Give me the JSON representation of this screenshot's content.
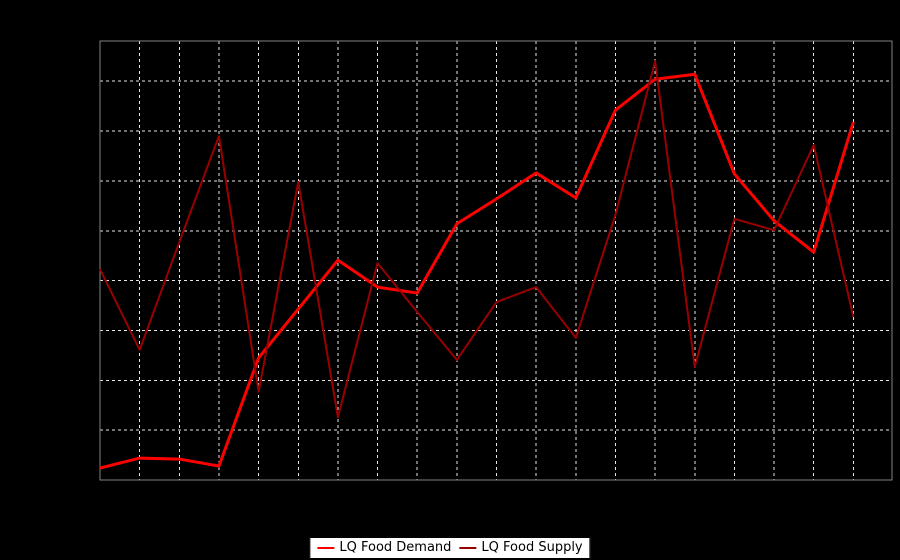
{
  "chart_data": {
    "type": "line",
    "title": "",
    "xlabel": "",
    "ylabel": "",
    "axis_tick_labels_visible": false,
    "grid": true,
    "gridline_color": "#e6e6e6",
    "plot_border_color": "#828282",
    "plot_background": "#000000",
    "page_background": "#000000",
    "xlim": [
      1,
      20.97
    ],
    "ylim": [
      0,
      8.81
    ],
    "x": [
      1,
      2,
      3,
      4,
      5,
      6,
      7,
      8,
      9,
      10,
      11,
      12,
      13,
      14,
      15,
      16,
      17,
      18,
      19,
      20
    ],
    "series": [
      {
        "name": "LQ Food Demand",
        "color": "#ff0000",
        "stroke_width": 3,
        "values": [
          0.24,
          0.44,
          0.42,
          0.28,
          2.45,
          3.43,
          4.41,
          3.87,
          3.75,
          5.14,
          5.64,
          6.16,
          5.66,
          7.42,
          8.04,
          8.14,
          6.14,
          5.2,
          4.57,
          7.18
        ]
      },
      {
        "name": "LQ Food Supply",
        "color": "#990000",
        "stroke_width": 2,
        "values": [
          4.23,
          2.61,
          4.77,
          6.9,
          1.77,
          5.98,
          1.26,
          4.35,
          3.37,
          2.41,
          3.57,
          3.87,
          2.85,
          5.32,
          8.4,
          2.27,
          5.24,
          5.01,
          6.72,
          3.27
        ]
      }
    ],
    "legend": {
      "position": "bottom",
      "background": "#ffffff",
      "border_color": "#000000"
    }
  }
}
